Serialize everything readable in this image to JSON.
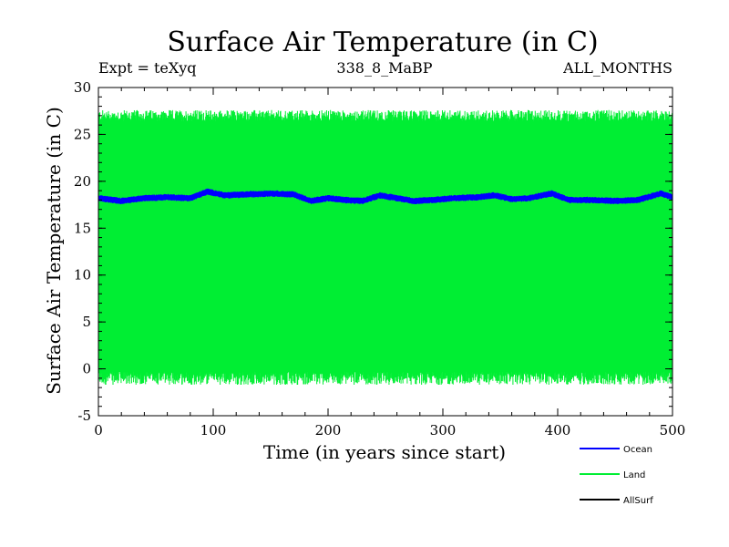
{
  "chart_data": {
    "type": "line",
    "title": "Surface Air Temperature (in C)",
    "subtitle_left": "Expt = teXyq",
    "subtitle_center": "338_8_MaBP",
    "subtitle_right": "ALL_MONTHS",
    "xlabel": "Time (in years since start)",
    "ylabel": "Surface Air Temperature (in C)",
    "xlim": [
      0,
      500
    ],
    "ylim": [
      -5,
      30
    ],
    "x_ticks": [
      "0",
      "100",
      "200",
      "300",
      "400",
      "500"
    ],
    "y_ticks": [
      "-5",
      "0",
      "5",
      "10",
      "15",
      "20",
      "25",
      "30"
    ],
    "grid": false,
    "legend_position": "bottom-right",
    "series": [
      {
        "name": "Ocean",
        "color": "#0000ff",
        "style": "band-oscillating",
        "mean_curve": {
          "x": [
            0,
            20,
            40,
            60,
            80,
            95,
            110,
            130,
            150,
            170,
            185,
            200,
            215,
            230,
            245,
            260,
            275,
            290,
            310,
            330,
            345,
            360,
            375,
            395,
            410,
            430,
            450,
            470,
            490,
            500
          ],
          "y": [
            18.2,
            17.9,
            18.2,
            18.3,
            18.2,
            18.9,
            18.5,
            18.6,
            18.7,
            18.6,
            17.9,
            18.2,
            18.0,
            17.9,
            18.5,
            18.2,
            17.9,
            18.0,
            18.2,
            18.3,
            18.5,
            18.1,
            18.2,
            18.7,
            18.0,
            18.0,
            17.9,
            18.0,
            18.7,
            18.3
          ]
        },
        "half_amplitude": 0.35
      },
      {
        "name": "Land",
        "color": "#00ee33",
        "style": "band-oscillating",
        "upper_mean": 27.0,
        "lower_mean": -1.0,
        "upper_noise": 0.6,
        "lower_noise": 0.7
      },
      {
        "name": "AllSurf",
        "color": "#000000",
        "style": "none"
      }
    ]
  }
}
